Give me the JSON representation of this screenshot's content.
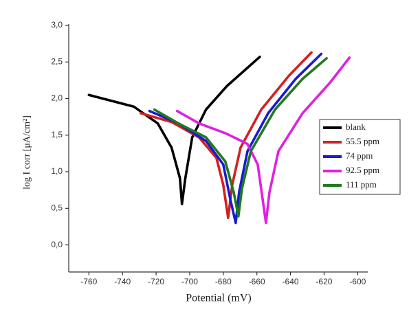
{
  "chart_data": {
    "type": "line",
    "x_label": "Potential (mV)",
    "y_label": "log I corr  [μA/cm²]",
    "xlim": [
      -772,
      -594
    ],
    "ylim": [
      -0.37,
      3.0
    ],
    "xticks": [
      -760,
      -740,
      -720,
      -700,
      -680,
      -660,
      -640,
      -620,
      -600
    ],
    "yticks": [
      {
        "value": 0.0,
        "label": "0,0"
      },
      {
        "value": 0.5,
        "label": "0,5"
      },
      {
        "value": 1.0,
        "label": "1,0"
      },
      {
        "value": 1.5,
        "label": "1,5"
      },
      {
        "value": 2.0,
        "label": "2,0"
      },
      {
        "value": 2.5,
        "label": "2,5"
      },
      {
        "value": 3.0,
        "label": "3,0"
      }
    ],
    "legend": "right",
    "series": [
      {
        "name": "blank",
        "color": "#000000",
        "x": [
          -760,
          -733.3,
          -719,
          -710.8,
          -705.8,
          -704.6,
          -702.6,
          -698.5,
          -690.3,
          -677.9,
          -658.3
        ],
        "values": [
          2.05,
          1.89,
          1.66,
          1.33,
          0.91,
          0.56,
          0.91,
          1.47,
          1.85,
          2.17,
          2.57
        ]
      },
      {
        "name": "55.5 ppm",
        "color": "#d42020",
        "x": [
          -729.2,
          -710.8,
          -694.4,
          -684.1,
          -680,
          -677.1,
          -674.7,
          -669.7,
          -657.4,
          -641,
          -627.5
        ],
        "values": [
          1.8,
          1.68,
          1.47,
          1.19,
          0.82,
          0.37,
          0.82,
          1.33,
          1.85,
          2.31,
          2.63
        ]
      },
      {
        "name": "74 ppm",
        "color": "#1a1ad0",
        "x": [
          -723.9,
          -706.7,
          -690.3,
          -680,
          -675.9,
          -672.6,
          -670.6,
          -665.6,
          -653.3,
          -636.9,
          -621.7
        ],
        "values": [
          1.83,
          1.66,
          1.42,
          1.1,
          0.63,
          0.3,
          0.72,
          1.28,
          1.8,
          2.27,
          2.61
        ]
      },
      {
        "name": "92.5 ppm",
        "color": "#e020e0",
        "x": [
          -707.5,
          -694.4,
          -678,
          -665.6,
          -659.5,
          -656.6,
          -654.6,
          -652.5,
          -647.2,
          -632.8,
          -616.4,
          -604.9
        ],
        "values": [
          1.83,
          1.66,
          1.52,
          1.38,
          1.1,
          0.63,
          0.3,
          0.72,
          1.28,
          1.8,
          2.22,
          2.56
        ]
      },
      {
        "name": "111 ppm",
        "color": "#1f7a1f",
        "x": [
          -721,
          -706.7,
          -690.3,
          -678.8,
          -673.8,
          -671,
          -668.9,
          -663.6,
          -649.2,
          -632.8,
          -618.5
        ],
        "values": [
          1.85,
          1.66,
          1.47,
          1.14,
          0.72,
          0.39,
          0.77,
          1.28,
          1.85,
          2.27,
          2.55
        ]
      }
    ]
  }
}
